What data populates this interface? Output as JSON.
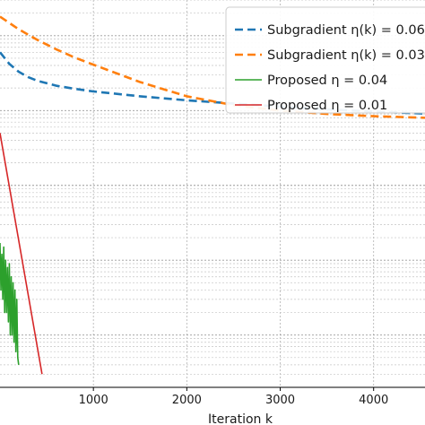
{
  "chart_data": {
    "type": "line",
    "xlabel": "Iteration k",
    "xticks": [
      1000,
      2000,
      3000,
      4000
    ],
    "xlim": [
      0,
      4550
    ],
    "yscale": "log",
    "grid": true,
    "legend_position": "top-right",
    "series": [
      {
        "name": "Subgradient η(k) = 0.06,",
        "style": "dashed",
        "color": "#1f77b4",
        "x": [
          0,
          100,
          200,
          300,
          400,
          600,
          800,
          1000,
          1500,
          2000,
          2500,
          3000,
          3500,
          4000,
          4550
        ],
        "y": [
          0.6,
          0.42,
          0.33,
          0.28,
          0.25,
          0.215,
          0.195,
          0.18,
          0.155,
          0.137,
          0.124,
          0.113,
          0.104,
          0.097,
          0.091
        ]
      },
      {
        "name": "Subgradient η(k) = 0.03,",
        "style": "dashed",
        "color": "#ff7f0e",
        "x": [
          0,
          200,
          400,
          600,
          800,
          1000,
          1500,
          2000,
          2500,
          3000,
          3500,
          4000,
          4550
        ],
        "y": [
          1.8,
          1.22,
          0.88,
          0.66,
          0.51,
          0.41,
          0.24,
          0.155,
          0.118,
          0.1,
          0.09,
          0.084,
          0.08
        ]
      },
      {
        "name": "Proposed η = 0.04",
        "style": "solid",
        "color": "#2ca02c",
        "x": [
          0,
          10,
          20,
          30,
          40,
          50,
          60,
          70,
          80,
          90,
          100,
          110,
          120,
          130,
          140,
          150,
          160,
          170,
          180,
          190,
          200
        ],
        "y": [
          0.0017,
          0.0004,
          0.0012,
          0.0003,
          0.0015,
          0.0002,
          0.001,
          0.0002,
          0.0008,
          0.00015,
          0.0009,
          0.0001,
          0.0006,
          0.0001,
          0.0005,
          8e-05,
          0.0004,
          6e-05,
          0.0003,
          5e-05,
          4e-05
        ]
      },
      {
        "name": "Proposed η = 0.01",
        "style": "solid",
        "color": "#d62728",
        "x": [
          0,
          450
        ],
        "y": [
          0.05,
          3e-05
        ]
      }
    ]
  }
}
